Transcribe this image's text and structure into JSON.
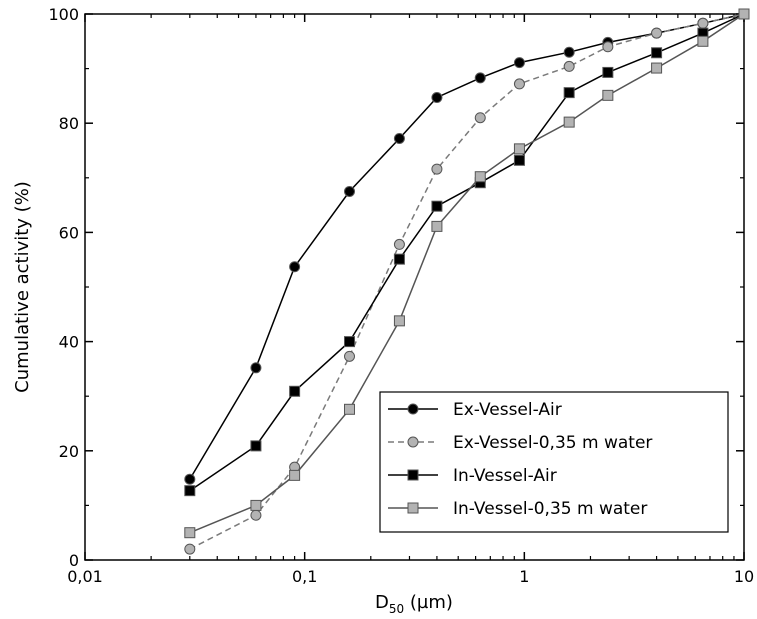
{
  "chart_data": {
    "type": "line",
    "xscale": "log",
    "xlim": [
      0.01,
      10
    ],
    "ylim": [
      0,
      100
    ],
    "xticks": [
      {
        "value": 0.01,
        "label": "0,01"
      },
      {
        "value": 0.1,
        "label": "0,1"
      },
      {
        "value": 1,
        "label": "1"
      },
      {
        "value": 10,
        "label": "10"
      }
    ],
    "yticks": [
      {
        "value": 0,
        "label": "0"
      },
      {
        "value": 20,
        "label": "20"
      },
      {
        "value": 40,
        "label": "40"
      },
      {
        "value": 60,
        "label": "60"
      },
      {
        "value": 80,
        "label": "80"
      },
      {
        "value": 100,
        "label": "100"
      }
    ],
    "xlabel": {
      "main": "D",
      "sub": "50",
      "unit": " (µm)"
    },
    "ylabel": "Cumulative activity (%)",
    "grid": false,
    "legend_position": "bottom-right",
    "series": [
      {
        "name": "Ex-Vessel-Air",
        "marker": "circle",
        "fill": "#000000",
        "line_color": "#000000",
        "dash": "solid",
        "x": [
          0.03,
          0.06,
          0.09,
          0.16,
          0.27,
          0.4,
          0.63,
          0.95,
          1.6,
          2.4,
          4.0,
          6.5,
          10
        ],
        "y": [
          14.8,
          35.2,
          53.7,
          67.5,
          77.2,
          84.7,
          88.3,
          91.1,
          93.0,
          94.8,
          96.5,
          98.3,
          100
        ]
      },
      {
        "name": "Ex-Vessel-0,35 m water",
        "marker": "circle",
        "fill": "#b3b3b3",
        "line_color": "#7a7a7a",
        "dash": "dashed",
        "x": [
          0.03,
          0.06,
          0.09,
          0.16,
          0.27,
          0.4,
          0.63,
          0.95,
          1.6,
          2.4,
          4.0,
          6.5,
          10
        ],
        "y": [
          2.0,
          8.2,
          17.0,
          37.3,
          57.8,
          71.6,
          81.0,
          87.2,
          90.4,
          94.0,
          96.5,
          98.3,
          100
        ]
      },
      {
        "name": "In-Vessel-Air",
        "marker": "square",
        "fill": "#000000",
        "line_color": "#000000",
        "dash": "solid",
        "x": [
          0.03,
          0.06,
          0.09,
          0.16,
          0.27,
          0.4,
          0.63,
          0.95,
          1.6,
          2.4,
          4.0,
          6.5,
          10
        ],
        "y": [
          12.7,
          20.9,
          30.9,
          40.0,
          55.1,
          64.8,
          69.1,
          73.2,
          85.6,
          89.3,
          92.9,
          96.5,
          100
        ]
      },
      {
        "name": "In-Vessel-0,35 m water",
        "marker": "square",
        "fill": "#b3b3b3",
        "line_color": "#555555",
        "dash": "solid",
        "x": [
          0.03,
          0.06,
          0.09,
          0.16,
          0.27,
          0.4,
          0.63,
          0.95,
          1.6,
          2.4,
          4.0,
          6.5,
          10
        ],
        "y": [
          5.0,
          10.0,
          15.5,
          27.6,
          43.8,
          61.1,
          70.2,
          75.3,
          80.2,
          85.1,
          90.1,
          95.0,
          100
        ]
      }
    ]
  }
}
